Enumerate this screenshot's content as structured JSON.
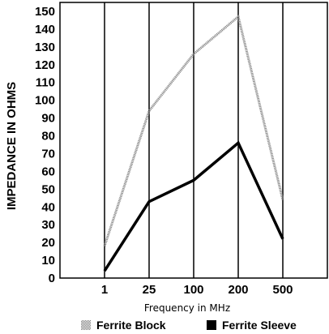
{
  "chart_data": {
    "type": "line",
    "xlabel": "Frequency in MHz",
    "ylabel": "IMPEDANCE IN OHMS",
    "categories": [
      "1",
      "25",
      "100",
      "200",
      "500"
    ],
    "y_ticks": [
      0,
      10,
      20,
      30,
      40,
      50,
      60,
      70,
      80,
      90,
      100,
      110,
      120,
      130,
      140,
      150
    ],
    "ylim": [
      0,
      155
    ],
    "grid": true,
    "legend_position": "bottom",
    "series": [
      {
        "name": "Ferrite Block",
        "color": "#9a9a9a",
        "style": "dotted-gray",
        "values": [
          18,
          94,
          126,
          147,
          44
        ]
      },
      {
        "name": "Ferrite Sleeve",
        "color": "#000000",
        "style": "solid-black",
        "values": [
          4,
          43,
          55,
          76,
          22
        ]
      }
    ]
  }
}
